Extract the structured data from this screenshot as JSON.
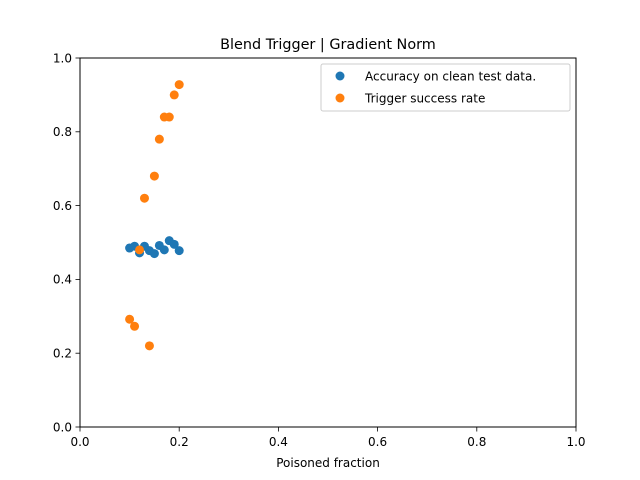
{
  "chart_data": {
    "type": "scatter",
    "title": "Blend Trigger | Gradient Norm",
    "xlabel": "Poisoned fraction",
    "ylabel": "",
    "xlim": [
      0.0,
      1.0
    ],
    "ylim": [
      0.0,
      1.0
    ],
    "xticks": [
      0.0,
      0.2,
      0.4,
      0.6,
      0.8,
      1.0
    ],
    "yticks": [
      0.0,
      0.2,
      0.4,
      0.6,
      0.8,
      1.0
    ],
    "xtick_labels": [
      "0.0",
      "0.2",
      "0.4",
      "0.6",
      "0.8",
      "1.0"
    ],
    "ytick_labels": [
      "0.0",
      "0.2",
      "0.4",
      "0.6",
      "0.8",
      "1.0"
    ],
    "grid": false,
    "legend_position": "top-right",
    "series": [
      {
        "name": "Accuracy on clean test data.",
        "color": "#1f77b4",
        "points": [
          [
            0.1,
            0.485
          ],
          [
            0.11,
            0.49
          ],
          [
            0.12,
            0.472
          ],
          [
            0.13,
            0.49
          ],
          [
            0.14,
            0.478
          ],
          [
            0.15,
            0.47
          ],
          [
            0.16,
            0.492
          ],
          [
            0.17,
            0.48
          ],
          [
            0.18,
            0.505
          ],
          [
            0.19,
            0.495
          ],
          [
            0.2,
            0.478
          ]
        ]
      },
      {
        "name": "Trigger success rate",
        "color": "#ff7f0e",
        "points": [
          [
            0.1,
            0.292
          ],
          [
            0.11,
            0.273
          ],
          [
            0.12,
            0.48
          ],
          [
            0.13,
            0.62
          ],
          [
            0.14,
            0.22
          ],
          [
            0.15,
            0.68
          ],
          [
            0.16,
            0.78
          ],
          [
            0.17,
            0.84
          ],
          [
            0.18,
            0.84
          ],
          [
            0.19,
            0.9
          ],
          [
            0.2,
            0.928
          ]
        ]
      }
    ]
  }
}
